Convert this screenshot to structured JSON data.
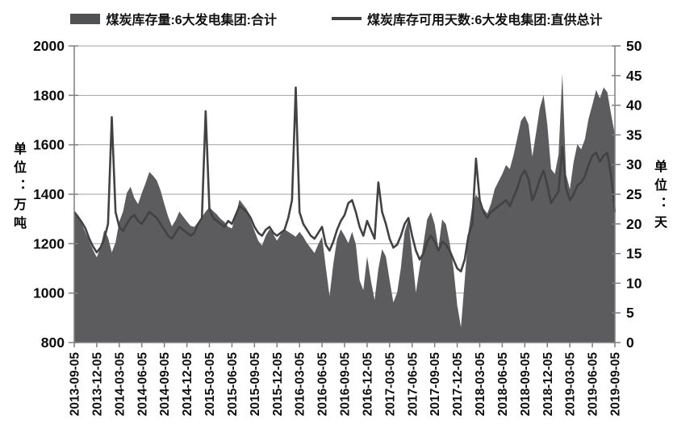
{
  "legend": {
    "series1_label": "煤炭库存量:6大发电集团:合计",
    "series2_label": "煤炭库存可用天数:6大发电集团:直供总计"
  },
  "axes": {
    "left_unit_label": "单位：万吨",
    "right_unit_label": "单位：天"
  },
  "colors": {
    "area_fill": "#5c5c5e",
    "line_stroke": "#424244",
    "legend_area_swatch": "#515254",
    "legend_line_swatch": "#424244",
    "gridline": "#a3a3a3",
    "axis_line": "#7f7f7f",
    "tick": "#7f7f7f",
    "label_text": "#0d0d0d"
  },
  "chart_data": {
    "type": "area",
    "title": "",
    "x_start": "2013-09-05",
    "x_end": "2019-09-05",
    "points_per_month": 2,
    "x_tick_labels": [
      "2013-09-05",
      "2013-12-05",
      "2014-03-05",
      "2014-06-05",
      "2014-09-05",
      "2014-12-05",
      "2015-03-05",
      "2015-06-05",
      "2015-09-05",
      "2015-12-05",
      "2016-03-05",
      "2016-06-05",
      "2016-09-05",
      "2016-12-05",
      "2017-03-05",
      "2017-06-05",
      "2017-09-05",
      "2017-12-05",
      "2018-03-05",
      "2018-06-05",
      "2018-09-05",
      "2018-12-05",
      "2019-03-05",
      "2019-06-05",
      "2019-09-05"
    ],
    "left_axis": {
      "label": "单位：万吨",
      "min": 800,
      "max": 2000,
      "ticks": [
        2000,
        1800,
        1600,
        1400,
        1200,
        1000,
        800
      ]
    },
    "right_axis": {
      "label": "单位：天",
      "min": 0,
      "max": 50,
      "ticks": [
        50,
        45,
        40,
        35,
        30,
        25,
        20,
        15,
        10,
        5,
        0
      ]
    },
    "grid": "horizontal",
    "legend_position": "top",
    "series": [
      {
        "name": "煤炭库存量:6大发电集团:合计",
        "type": "area",
        "axis": "left",
        "values": [
          1330,
          1305,
          1280,
          1245,
          1210,
          1175,
          1145,
          1185,
          1255,
          1225,
          1165,
          1205,
          1290,
          1330,
          1405,
          1430,
          1385,
          1360,
          1405,
          1445,
          1490,
          1475,
          1455,
          1415,
          1360,
          1310,
          1270,
          1295,
          1330,
          1310,
          1290,
          1272,
          1268,
          1288,
          1308,
          1330,
          1348,
          1332,
          1318,
          1300,
          1288,
          1268,
          1262,
          1312,
          1378,
          1358,
          1338,
          1292,
          1252,
          1212,
          1192,
          1232,
          1258,
          1238,
          1212,
          1238,
          1258,
          1248,
          1238,
          1228,
          1248,
          1228,
          1202,
          1182,
          1162,
          1198,
          1228,
          1105,
          988,
          1118,
          1218,
          1258,
          1232,
          1202,
          1248,
          1198,
          1052,
          1012,
          1148,
          1052,
          972,
          1098,
          1178,
          1148,
          1052,
          962,
          1002,
          1102,
          1248,
          1298,
          1152,
          1002,
          1102,
          1198,
          1298,
          1328,
          1278,
          1182,
          1298,
          1278,
          1202,
          1102,
          952,
          862,
          1052,
          1248,
          1352,
          1398,
          1378,
          1342,
          1322,
          1362,
          1422,
          1452,
          1482,
          1518,
          1502,
          1558,
          1628,
          1698,
          1718,
          1682,
          1552,
          1648,
          1748,
          1802,
          1682,
          1502,
          1482,
          1562,
          1888,
          1480,
          1420,
          1530,
          1602,
          1582,
          1622,
          1706,
          1762,
          1822,
          1788,
          1832,
          1812,
          1722,
          1642
        ]
      },
      {
        "name": "煤炭库存可用天数:6大发电集团:直供总计",
        "type": "line",
        "axis": "right",
        "values": [
          22,
          21.2,
          20.3,
          19.2,
          17.5,
          16.2,
          15.2,
          16,
          17.5,
          20,
          38,
          22,
          19.5,
          18.8,
          20,
          21,
          21.5,
          20.5,
          20,
          21,
          22,
          21.5,
          21,
          20,
          19,
          18,
          17.5,
          18.5,
          19.5,
          19,
          18.5,
          18,
          18.5,
          20,
          21,
          39,
          22.5,
          21,
          20.5,
          20,
          19.5,
          20.5,
          20,
          21.5,
          23,
          22.5,
          22,
          21,
          19.5,
          18.5,
          18,
          19,
          19.5,
          18.5,
          18,
          18.5,
          19,
          21,
          24,
          43,
          22,
          20,
          19,
          18,
          17.5,
          18.5,
          19.5,
          16.5,
          15.5,
          17,
          19,
          20.5,
          21.5,
          23.5,
          24,
          22,
          19.5,
          18,
          20.5,
          19,
          17.5,
          27,
          22,
          20,
          17.5,
          16,
          16.5,
          18,
          20,
          21,
          18,
          15.5,
          14,
          15,
          17,
          18,
          17,
          15.5,
          17,
          16.5,
          15.5,
          14,
          12.5,
          12,
          14,
          18,
          20,
          31,
          24,
          22,
          21,
          22,
          22.5,
          23,
          23.5,
          24,
          23,
          24.5,
          26,
          28,
          29,
          27.5,
          24,
          25.5,
          27.5,
          29,
          26.5,
          23.5,
          24.5,
          25.5,
          33,
          26,
          24,
          25,
          26.5,
          27,
          28,
          30,
          31.5,
          32,
          30.5,
          31.5,
          32,
          28,
          22
        ]
      }
    ]
  }
}
